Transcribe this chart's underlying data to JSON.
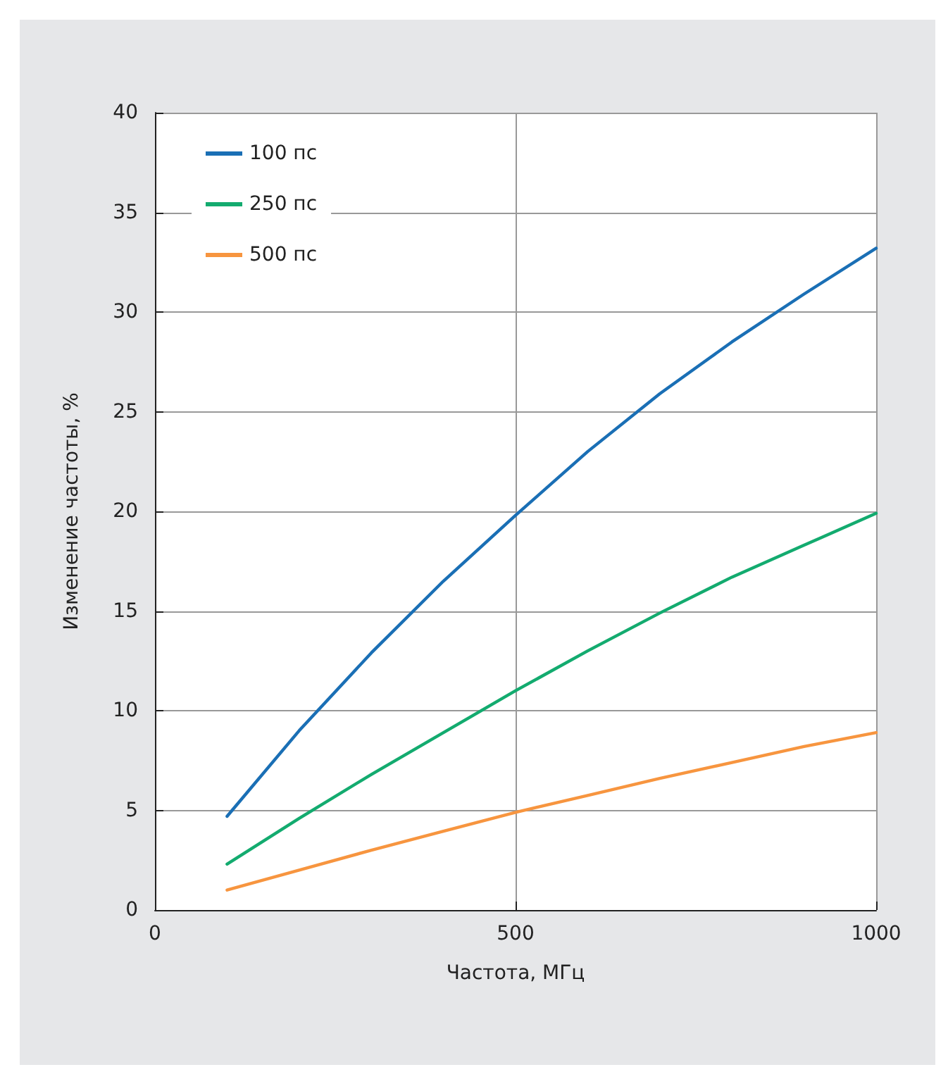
{
  "chart_data": {
    "type": "line",
    "xlabel": "Частота, МГц",
    "ylabel": "Изменение частоты, %",
    "x": [
      100,
      200,
      300,
      400,
      500,
      600,
      700,
      800,
      900,
      1000
    ],
    "series": [
      {
        "name": "100 пс",
        "color": "#1a6fb5",
        "values": [
          4.7,
          9.0,
          12.9,
          16.5,
          19.8,
          23.0,
          25.9,
          28.5,
          30.9,
          33.2
        ]
      },
      {
        "name": "250 пс",
        "color": "#13ab6f",
        "values": [
          2.3,
          4.6,
          6.8,
          8.9,
          11.0,
          13.0,
          14.9,
          16.7,
          18.3,
          19.9
        ]
      },
      {
        "name": "500 пс",
        "color": "#f7953f",
        "values": [
          1.0,
          2.0,
          3.0,
          3.95,
          4.9,
          5.75,
          6.6,
          7.4,
          8.2,
          8.9
        ]
      }
    ],
    "xlim": [
      0,
      1000
    ],
    "xticks": [
      0,
      500,
      1000
    ],
    "ylim": [
      0,
      40
    ],
    "yticks": [
      0,
      5,
      10,
      15,
      20,
      25,
      30,
      35,
      40
    ],
    "grid": true,
    "legend": "top left",
    "marker": "none",
    "line_style": "solid"
  }
}
